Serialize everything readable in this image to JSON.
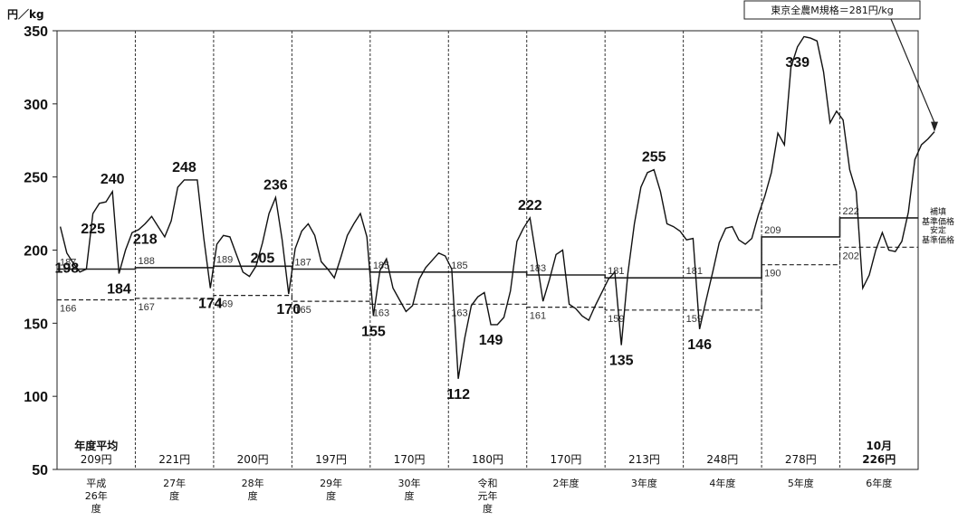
{
  "chart_data": {
    "type": "line",
    "unit_label": "円／kg",
    "ylim": [
      50,
      350
    ],
    "yticks": [
      "50",
      "100",
      "150",
      "200",
      "250",
      "300",
      "350"
    ],
    "fiscal_years": [
      {
        "label": [
          "平成",
          "26年",
          "度"
        ],
        "avg_label": "年度平均",
        "avg": "209円"
      },
      {
        "label": [
          "27年",
          "度"
        ],
        "avg": "221円"
      },
      {
        "label": [
          "28年",
          "度"
        ],
        "avg": "200円"
      },
      {
        "label": [
          "29年",
          "度"
        ],
        "avg": "197円"
      },
      {
        "label": [
          "30年",
          "度"
        ],
        "avg": "170円"
      },
      {
        "label": [
          "令和",
          "元年",
          "度"
        ],
        "avg": "180円"
      },
      {
        "label": [
          "2年度"
        ],
        "avg": "170円"
      },
      {
        "label": [
          "3年度"
        ],
        "avg": "213円"
      },
      {
        "label": [
          "4年度"
        ],
        "avg": "248円"
      },
      {
        "label": [
          "5年度"
        ],
        "avg": "278円"
      },
      {
        "label": [
          "6年度"
        ],
        "avg_label": "10月",
        "avg": "226円"
      }
    ],
    "series": [
      {
        "name": "東京全農M規格",
        "values": [
          216,
          198,
          191,
          185,
          187,
          225,
          232,
          233,
          240,
          184,
          200,
          212,
          214,
          218,
          223,
          216,
          209,
          220,
          243,
          248,
          248,
          248,
          208,
          174,
          204,
          210,
          209,
          197,
          185,
          182,
          189,
          205,
          225,
          236,
          207,
          170,
          201,
          213,
          218,
          210,
          192,
          187,
          181,
          195,
          210,
          218,
          225,
          209,
          155,
          186,
          194,
          174,
          166,
          158,
          162,
          180,
          188,
          193,
          198,
          196,
          187,
          112,
          140,
          162,
          168,
          171,
          149,
          149,
          154,
          172,
          206,
          215,
          222,
          194,
          165,
          180,
          197,
          200,
          163,
          160,
          155,
          152,
          162,
          171,
          180,
          185,
          135,
          184,
          218,
          243,
          253,
          255,
          240,
          218,
          216,
          213,
          207,
          208,
          146,
          166,
          185,
          205,
          215,
          216,
          207,
          204,
          208,
          224,
          237,
          253,
          280,
          272,
          325,
          339,
          346,
          345,
          343,
          322,
          287,
          295,
          289,
          255,
          240,
          174,
          183,
          200,
          212,
          200,
          199,
          206,
          226,
          262,
          272,
          276,
          281
        ]
      },
      {
        "name": "補填基準価格",
        "values": [
          187,
          188,
          189,
          187,
          185,
          185,
          183,
          181,
          181,
          209,
          222
        ]
      },
      {
        "name": "安定基準価格",
        "values": [
          166,
          167,
          169,
          165,
          163,
          163,
          161,
          159,
          159,
          190,
          202
        ]
      }
    ],
    "peak_labels": [
      {
        "text": "240",
        "value": 240
      },
      {
        "text": "184",
        "value": 184
      },
      {
        "text": "248",
        "value": 248
      },
      {
        "text": "174",
        "value": 174
      },
      {
        "text": "236",
        "value": 236
      },
      {
        "text": "170",
        "value": 170
      },
      {
        "text": "225",
        "value": 225
      },
      {
        "text": "155",
        "value": 155
      },
      {
        "text": "198",
        "value": 198
      },
      {
        "text": "112",
        "value": 112
      },
      {
        "text": "222",
        "value": 222
      },
      {
        "text": "149",
        "value": 149
      },
      {
        "text": "135",
        "value": 135
      },
      {
        "text": "218",
        "value": 218
      },
      {
        "text": "255",
        "value": 255
      },
      {
        "text": "146",
        "value": 146
      },
      {
        "text": "205",
        "value": 205
      },
      {
        "text": "339",
        "value": 339
      }
    ],
    "side_labels": {
      "hoten": [
        "補填",
        "基準価格"
      ],
      "antei": [
        "安定",
        "基準価格"
      ]
    },
    "callout": "東京全農M規格＝281円/kg",
    "grid": "vertical dashed separators between fiscal years"
  }
}
